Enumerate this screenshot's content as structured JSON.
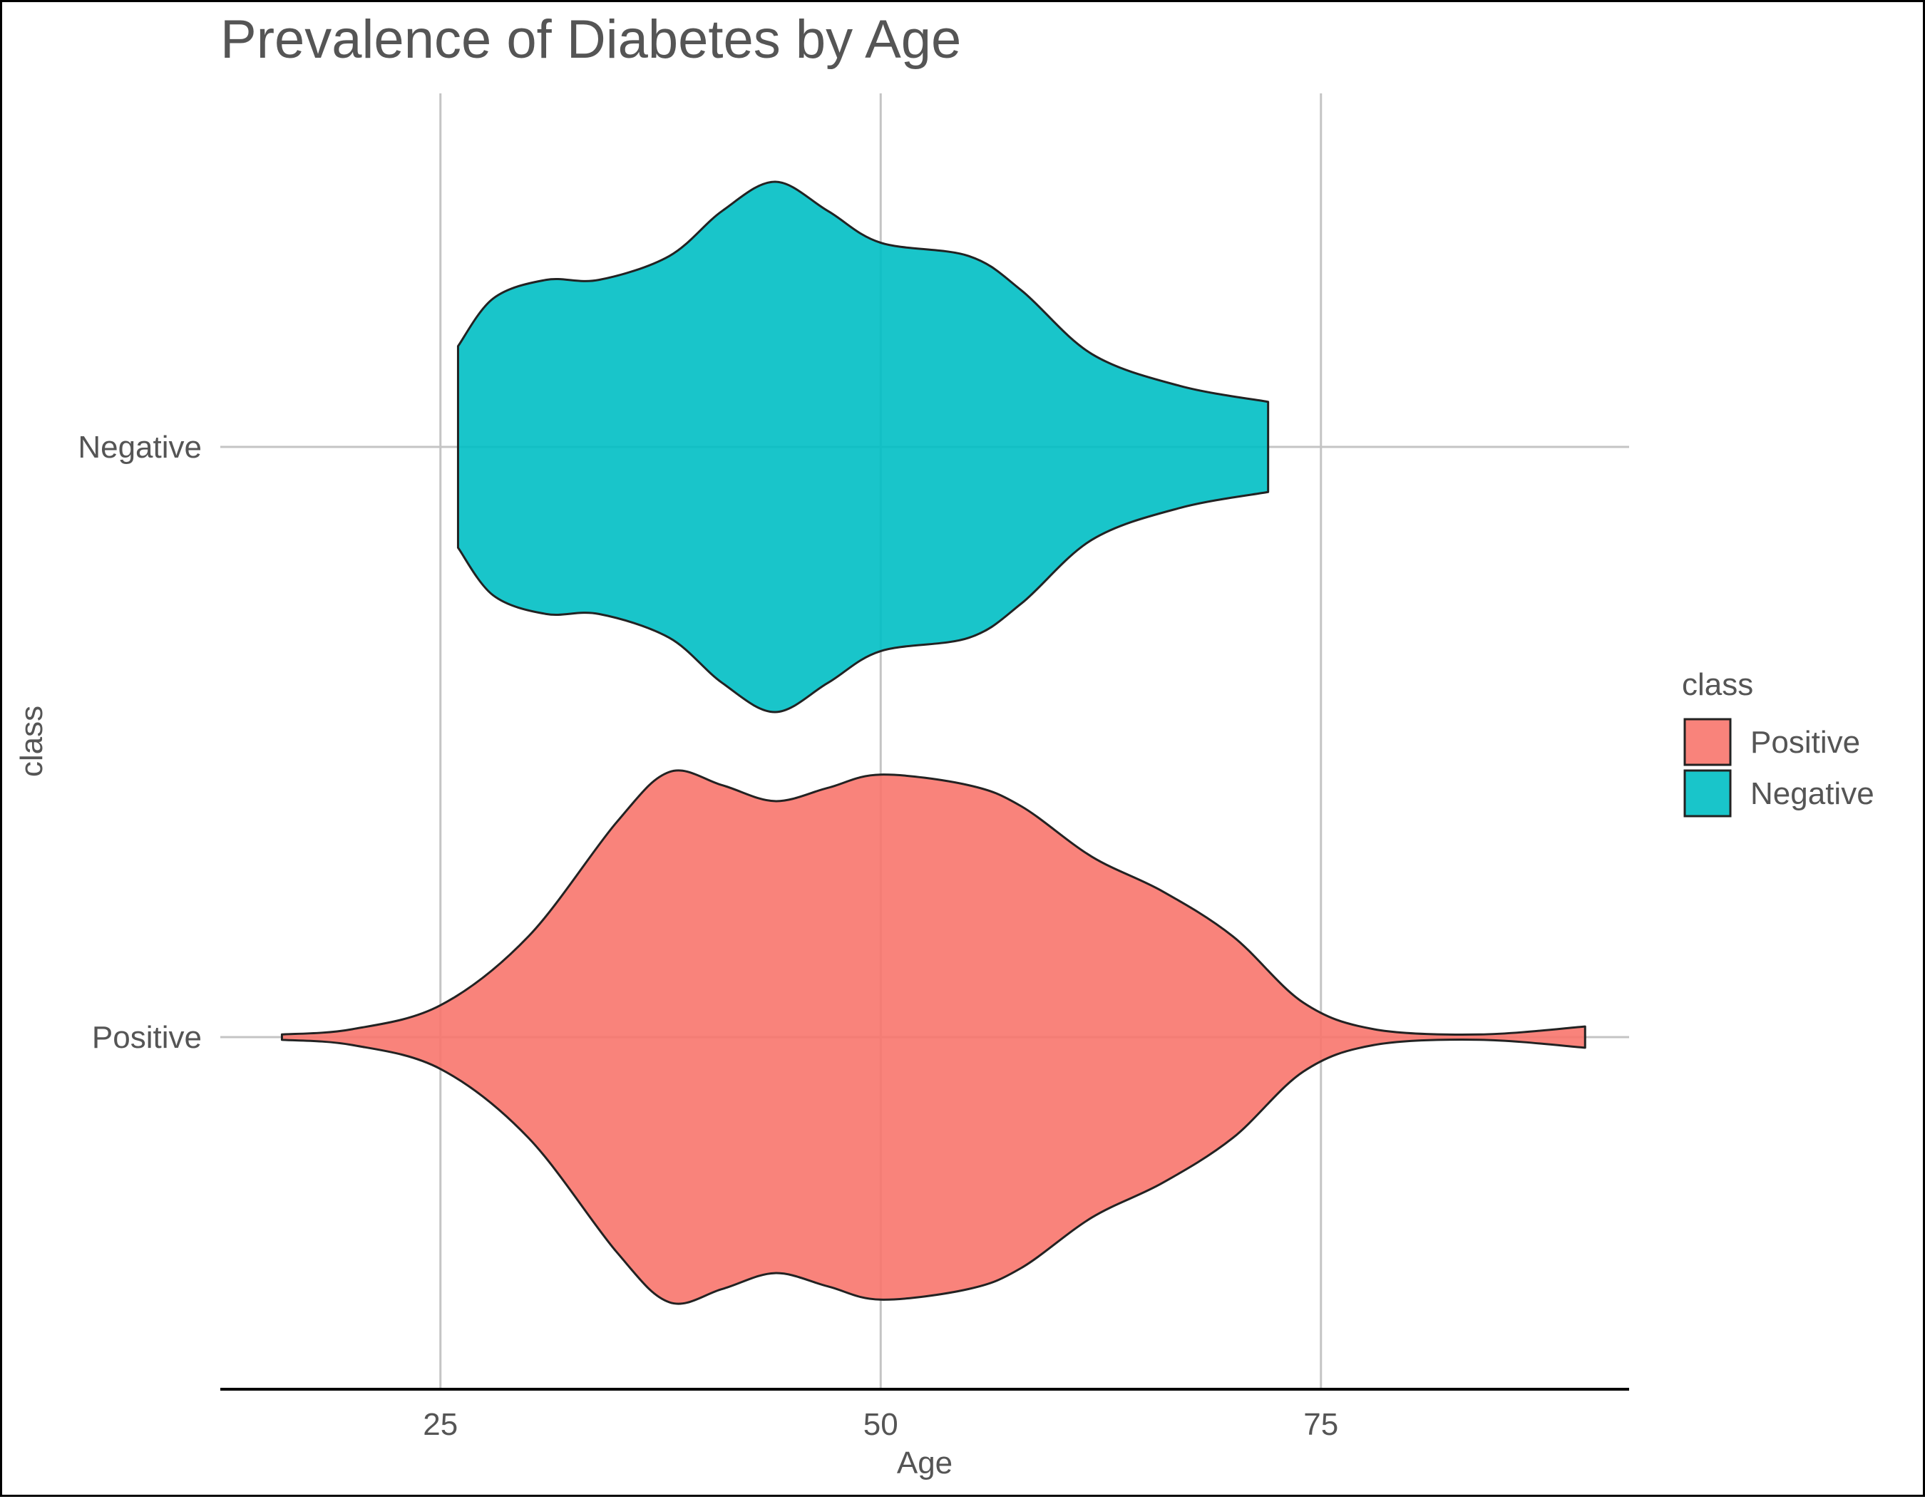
{
  "chart_data": {
    "type": "violin",
    "title": "Prevalence of Diabetes by Age",
    "xlabel": "Age",
    "ylabel": "class",
    "xlim": [
      12.5,
      92.5
    ],
    "x_ticks": [
      25,
      50,
      75
    ],
    "x_tick_labels": [
      "25",
      "50",
      "75"
    ],
    "categories": [
      "Positive",
      "Negative"
    ],
    "grid": true,
    "legend": {
      "title": "class",
      "position": "right",
      "items": [
        {
          "label": "Positive",
          "color": "#F8766D"
        },
        {
          "label": "Negative",
          "color": "#00BFC4"
        }
      ]
    },
    "series": [
      {
        "name": "Positive",
        "color": "#F8766D",
        "density": [
          [
            16,
            0.01
          ],
          [
            20,
            0.03
          ],
          [
            25,
            0.12
          ],
          [
            30,
            0.38
          ],
          [
            35,
            0.81
          ],
          [
            38,
            1.0
          ],
          [
            41,
            0.95
          ],
          [
            44,
            0.89
          ],
          [
            47,
            0.94
          ],
          [
            50,
            0.99
          ],
          [
            55,
            0.95
          ],
          [
            58,
            0.87
          ],
          [
            62,
            0.68
          ],
          [
            66,
            0.55
          ],
          [
            70,
            0.38
          ],
          [
            74,
            0.13
          ],
          [
            78,
            0.03
          ],
          [
            84,
            0.01
          ],
          [
            90,
            0.04
          ]
        ]
      },
      {
        "name": "Negative",
        "color": "#00BFC4",
        "density": [
          [
            26,
            0.38
          ],
          [
            28,
            0.56
          ],
          [
            31,
            0.63
          ],
          [
            34,
            0.63
          ],
          [
            38,
            0.72
          ],
          [
            41,
            0.89
          ],
          [
            44,
            1.0
          ],
          [
            47,
            0.89
          ],
          [
            50,
            0.77
          ],
          [
            55,
            0.72
          ],
          [
            58,
            0.59
          ],
          [
            62,
            0.35
          ],
          [
            67,
            0.23
          ],
          [
            72,
            0.17
          ]
        ]
      }
    ]
  }
}
